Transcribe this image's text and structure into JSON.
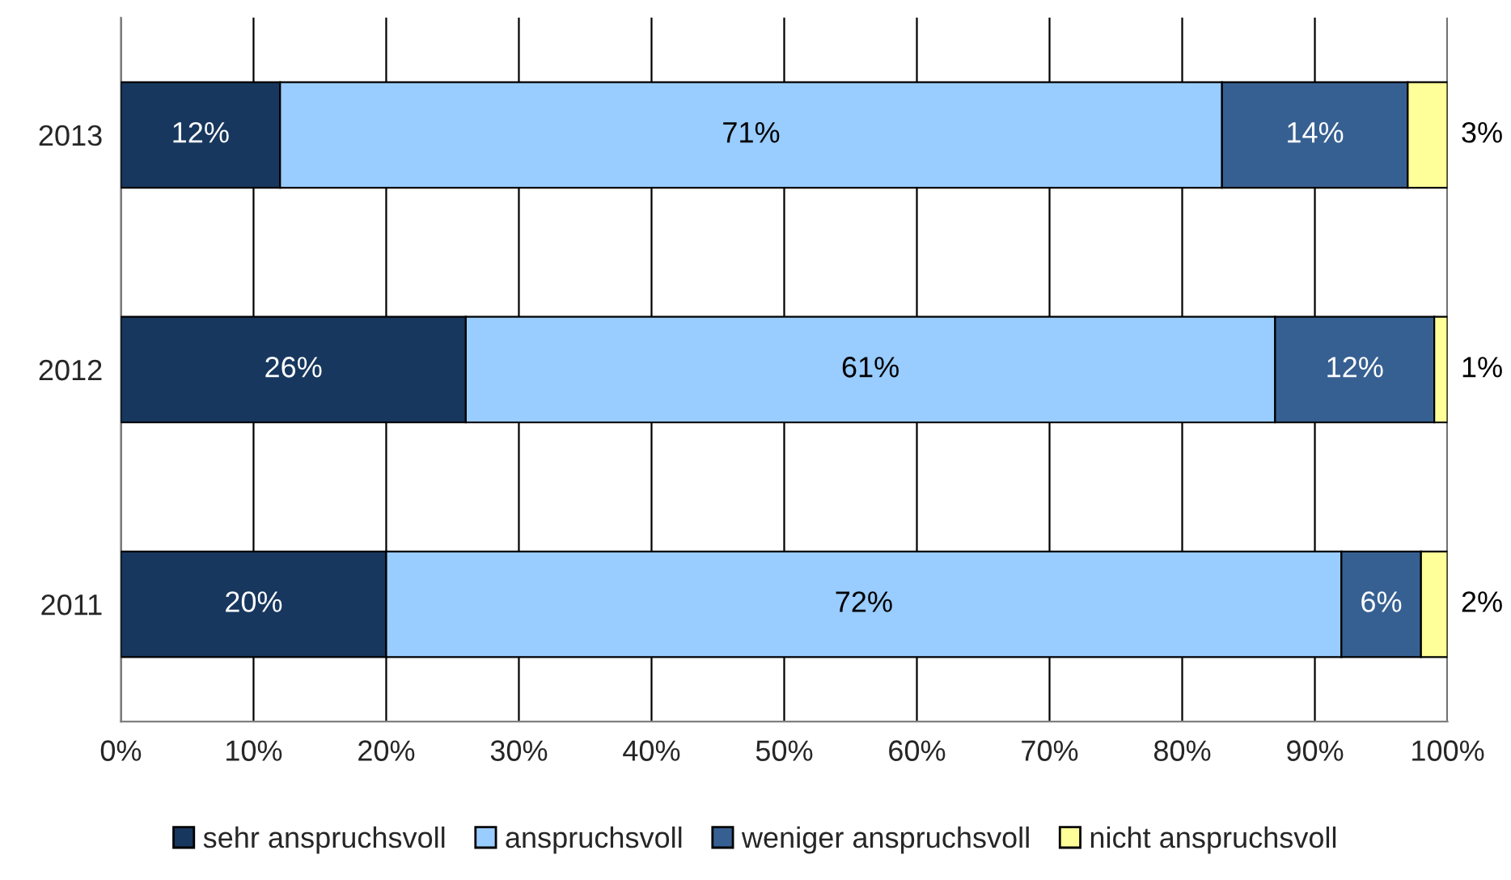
{
  "chart_data": {
    "type": "bar",
    "orientation": "horizontal",
    "stacked": true,
    "categories": [
      "2013",
      "2012",
      "2011"
    ],
    "series": [
      {
        "name": "sehr anspruchsvoll",
        "color": "#17375e",
        "values": [
          12,
          26,
          20
        ],
        "value_labels": [
          "12%",
          "26%",
          "20%"
        ]
      },
      {
        "name": "anspruchsvoll",
        "color": "#99ccff",
        "values": [
          71,
          61,
          72
        ],
        "value_labels": [
          "71%",
          "61%",
          "72%"
        ]
      },
      {
        "name": "weniger anspruchsvoll",
        "color": "#376092",
        "values": [
          14,
          12,
          6
        ],
        "value_labels": [
          "14%",
          "12%",
          "6%"
        ]
      },
      {
        "name": "nicht anspruchsvoll",
        "color": "#ffff99",
        "values": [
          3,
          1,
          2
        ],
        "value_labels": [
          "3%",
          "1%",
          "2%"
        ]
      }
    ],
    "xlim": [
      0,
      100
    ],
    "xticks": [
      {
        "value": 0,
        "label": "0%"
      },
      {
        "value": 10,
        "label": "10%"
      },
      {
        "value": 20,
        "label": "20%"
      },
      {
        "value": 30,
        "label": "30%"
      },
      {
        "value": 40,
        "label": "40%"
      },
      {
        "value": 50,
        "label": "50%"
      },
      {
        "value": 60,
        "label": "60%"
      },
      {
        "value": 70,
        "label": "70%"
      },
      {
        "value": 80,
        "label": "80%"
      },
      {
        "value": 90,
        "label": "90%"
      },
      {
        "value": 100,
        "label": "100%"
      }
    ],
    "grid": "x",
    "legend": "bottom"
  }
}
